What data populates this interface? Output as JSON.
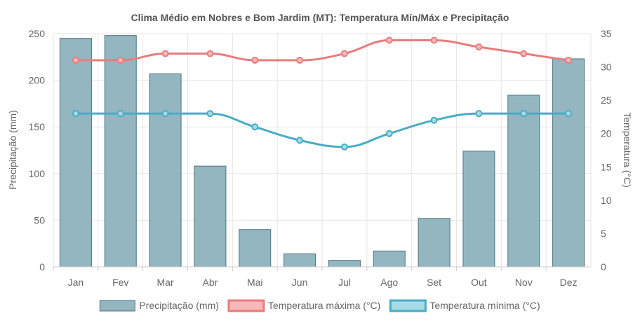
{
  "chart_data": {
    "type": "bar",
    "title": "Clima Médio em Nobres e Bom Jardim (MT): Temperatura Mín/Máx e Precipitação",
    "categories": [
      "Jan",
      "Fev",
      "Mar",
      "Abr",
      "Mai",
      "Jun",
      "Jul",
      "Ago",
      "Set",
      "Out",
      "Nov",
      "Dez"
    ],
    "y_left": {
      "label": "Precipitação (mm)",
      "range": [
        0,
        250
      ],
      "ticks": [
        "0",
        "50",
        "100",
        "150",
        "200",
        "250"
      ]
    },
    "y_right": {
      "label": "Temperatura (°C)",
      "range": [
        0,
        35
      ],
      "ticks": [
        "0",
        "5",
        "10",
        "15",
        "20",
        "25",
        "30",
        "35"
      ]
    },
    "series": [
      {
        "name": "Precipitação (mm)",
        "type": "bar",
        "axis": "left",
        "color": "#94b6c0",
        "border": "#4a7380",
        "values": [
          245,
          248,
          207,
          108,
          40,
          14,
          7,
          17,
          52,
          124,
          184,
          223
        ]
      },
      {
        "name": "Temperatura máxima (°C)",
        "type": "line",
        "axis": "right",
        "color": "#e97c7c",
        "fill": "#f6b8b8",
        "values": [
          31,
          31,
          32,
          32,
          31,
          31,
          32,
          34,
          34,
          33,
          32,
          31
        ]
      },
      {
        "name": "Temperatura mínima (°C)",
        "type": "line",
        "axis": "right",
        "color": "#48adc4",
        "fill": "#a9dbe6",
        "values": [
          23,
          23,
          23,
          23,
          21,
          19,
          18,
          20,
          22,
          23,
          23,
          23
        ]
      }
    ],
    "grid": true,
    "legend": "bottom"
  }
}
